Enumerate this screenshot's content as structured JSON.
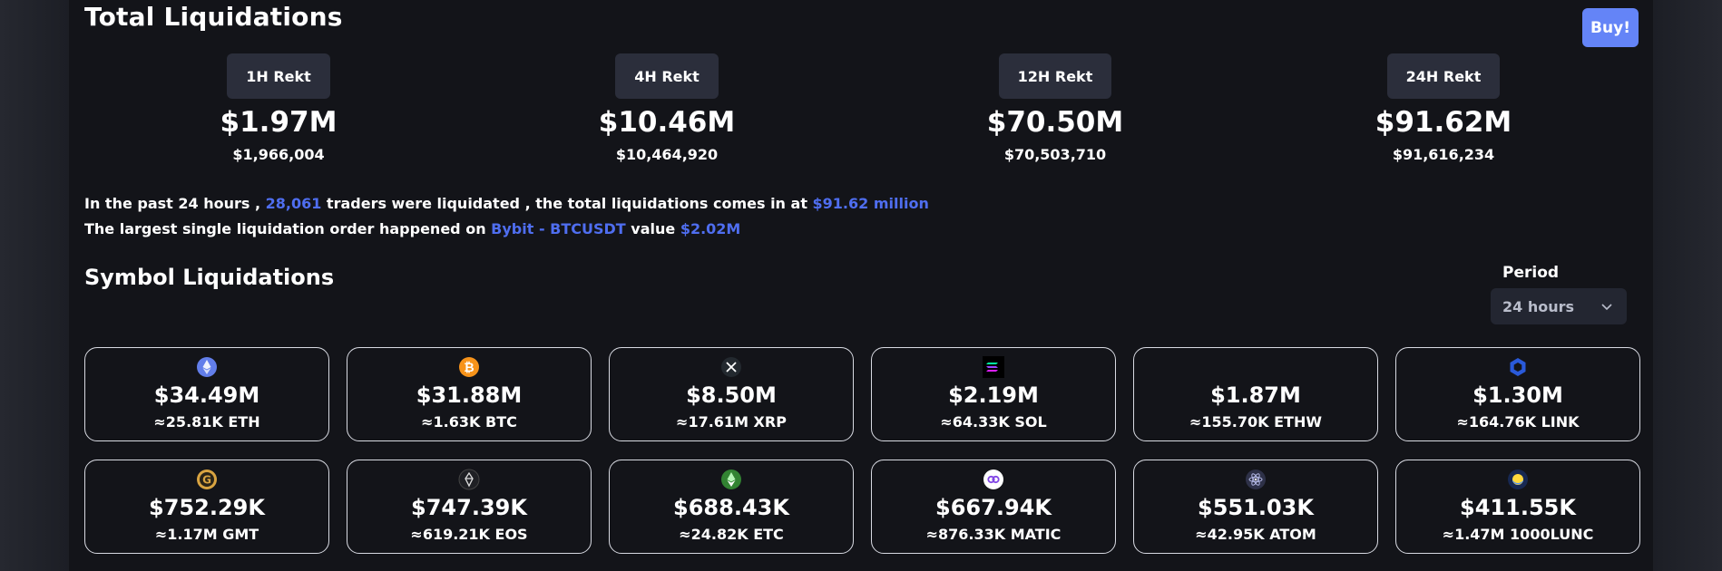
{
  "header": {
    "title": "Total Liquidations",
    "buy_label": "Buy!"
  },
  "rekt": [
    {
      "label": "1H Rekt",
      "short": "$1.97M",
      "full": "$1,966,004"
    },
    {
      "label": "4H Rekt",
      "short": "$10.46M",
      "full": "$10,464,920"
    },
    {
      "label": "12H Rekt",
      "short": "$70.50M",
      "full": "$70,503,710"
    },
    {
      "label": "24H Rekt",
      "short": "$91.62M",
      "full": "$91,616,234"
    }
  ],
  "summary": {
    "line1_a": "In the past 24 hours , ",
    "traders": "28,061",
    "line1_b": " traders were liquidated , the total liquidations comes in at ",
    "total": "$91.62 million",
    "line2_a": "The largest single liquidation order happened on ",
    "exchange": "Bybit - BTCUSDT",
    "line2_b": " value ",
    "value": "$2.02M"
  },
  "symbols": {
    "title": "Symbol Liquidations",
    "period_label": "Period",
    "period_value": "24 hours",
    "cards": [
      {
        "usd": "$34.49M",
        "amount": "≈25.81K ETH",
        "icon": "eth-icon"
      },
      {
        "usd": "$31.88M",
        "amount": "≈1.63K BTC",
        "icon": "btc-icon"
      },
      {
        "usd": "$8.50M",
        "amount": "≈17.61M XRP",
        "icon": "xrp-icon"
      },
      {
        "usd": "$2.19M",
        "amount": "≈64.33K SOL",
        "icon": "sol-icon"
      },
      {
        "usd": "$1.87M",
        "amount": "≈155.70K ETHW",
        "icon": ""
      },
      {
        "usd": "$1.30M",
        "amount": "≈164.76K LINK",
        "icon": "link-icon"
      },
      {
        "usd": "$752.29K",
        "amount": "≈1.17M GMT",
        "icon": "gmt-icon"
      },
      {
        "usd": "$747.39K",
        "amount": "≈619.21K EOS",
        "icon": "eos-icon"
      },
      {
        "usd": "$688.43K",
        "amount": "≈24.82K ETC",
        "icon": "etc-icon"
      },
      {
        "usd": "$667.94K",
        "amount": "≈876.33K MATIC",
        "icon": "matic-icon"
      },
      {
        "usd": "$551.03K",
        "amount": "≈42.95K ATOM",
        "icon": "atom-icon"
      },
      {
        "usd": "$411.55K",
        "amount": "≈1.47M 1000LUNC",
        "icon": "lunc-icon"
      }
    ]
  },
  "colors": {
    "accent": "#4f6ef0",
    "buy": "#6484f7",
    "panel": "#131419",
    "tag": "#2b2e3b"
  }
}
